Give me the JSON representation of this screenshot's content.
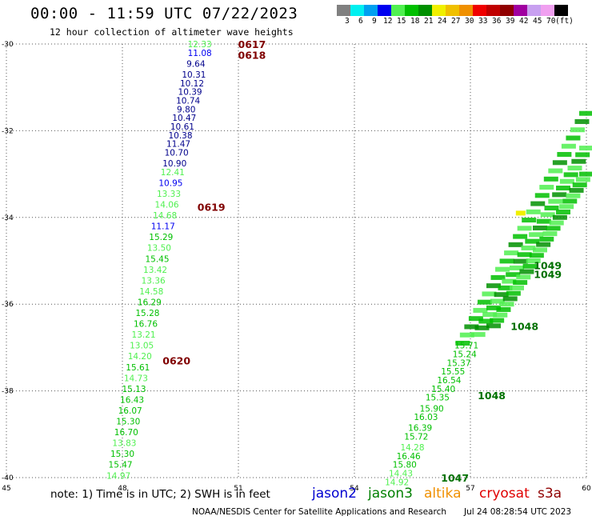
{
  "header": {
    "title": "00:00 - 11:59 UTC 07/22/2023",
    "subtitle": "12 hour collection of altimeter wave heights"
  },
  "legend": {
    "colors": [
      "#808080",
      "#00f0f0",
      "#00a0f0",
      "#0000f0",
      "#50f050",
      "#00c000",
      "#009000",
      "#f0f000",
      "#f0c000",
      "#f09000",
      "#f00000",
      "#c00000",
      "#900000",
      "#a000a0",
      "#c8a0f0",
      "#f0a0f0",
      "#000000"
    ],
    "labels": [
      "3",
      "6",
      "9",
      "12",
      "15",
      "18",
      "21",
      "24",
      "27",
      "30",
      "33",
      "36",
      "39",
      "42",
      "45",
      "70",
      "(ft)"
    ]
  },
  "axes": {
    "lat_labels": [
      "-30",
      "-32",
      "-34",
      "-36",
      "-38",
      "-40"
    ],
    "lon_labels": [
      "45",
      "48",
      "51",
      "54",
      "57",
      "60"
    ]
  },
  "chart_data": {
    "type": "scatter",
    "x_range": [
      45,
      60
    ],
    "y_range": [
      -40,
      -30
    ],
    "point_labels": [
      {
        "v": "12.33",
        "c": "#50f050",
        "x": 50.0,
        "y": -30.0
      },
      {
        "v": "11.08",
        "c": "#0000f0",
        "x": 50.0,
        "y": -30.2
      },
      {
        "v": "9.64",
        "c": "#00008b",
        "x": 49.9,
        "y": -30.45
      },
      {
        "v": "10.31",
        "c": "#00008b",
        "x": 49.85,
        "y": -30.7
      },
      {
        "v": "10.12",
        "c": "#00008b",
        "x": 49.8,
        "y": -30.9
      },
      {
        "v": "10.39",
        "c": "#00008b",
        "x": 49.75,
        "y": -31.1
      },
      {
        "v": "10.74",
        "c": "#00008b",
        "x": 49.7,
        "y": -31.3
      },
      {
        "v": "9.80",
        "c": "#00008b",
        "x": 49.65,
        "y": -31.5
      },
      {
        "v": "10.47",
        "c": "#00008b",
        "x": 49.6,
        "y": -31.7
      },
      {
        "v": "10.61",
        "c": "#00008b",
        "x": 49.55,
        "y": -31.9
      },
      {
        "v": "10.38",
        "c": "#00008b",
        "x": 49.5,
        "y": -32.1
      },
      {
        "v": "11.47",
        "c": "#00008b",
        "x": 49.45,
        "y": -32.3
      },
      {
        "v": "10.70",
        "c": "#00008b",
        "x": 49.4,
        "y": -32.5
      },
      {
        "v": "10.90",
        "c": "#00008b",
        "x": 49.35,
        "y": -32.75
      },
      {
        "v": "12.41",
        "c": "#50f050",
        "x": 49.3,
        "y": -32.95
      },
      {
        "v": "10.95",
        "c": "#0000f0",
        "x": 49.25,
        "y": -33.2
      },
      {
        "v": "13.33",
        "c": "#50f050",
        "x": 49.2,
        "y": -33.45
      },
      {
        "v": "14.06",
        "c": "#50f050",
        "x": 49.15,
        "y": -33.7
      },
      {
        "v": "14.68",
        "c": "#50f050",
        "x": 49.1,
        "y": -33.95
      },
      {
        "v": "11.17",
        "c": "#0000f0",
        "x": 49.05,
        "y": -34.2
      },
      {
        "v": "15.29",
        "c": "#00c000",
        "x": 49.0,
        "y": -34.45
      },
      {
        "v": "13.50",
        "c": "#50f050",
        "x": 48.95,
        "y": -34.7
      },
      {
        "v": "15.45",
        "c": "#00c000",
        "x": 48.9,
        "y": -34.95
      },
      {
        "v": "13.42",
        "c": "#50f050",
        "x": 48.85,
        "y": -35.2
      },
      {
        "v": "13.36",
        "c": "#50f050",
        "x": 48.8,
        "y": -35.45
      },
      {
        "v": "14.58",
        "c": "#50f050",
        "x": 48.75,
        "y": -35.7
      },
      {
        "v": "16.29",
        "c": "#00c000",
        "x": 48.7,
        "y": -35.95
      },
      {
        "v": "15.28",
        "c": "#00c000",
        "x": 48.65,
        "y": -36.2
      },
      {
        "v": "16.76",
        "c": "#00c000",
        "x": 48.6,
        "y": -36.45
      },
      {
        "v": "13.21",
        "c": "#50f050",
        "x": 48.55,
        "y": -36.7
      },
      {
        "v": "13.05",
        "c": "#50f050",
        "x": 48.5,
        "y": -36.95
      },
      {
        "v": "14.20",
        "c": "#50f050",
        "x": 48.45,
        "y": -37.2
      },
      {
        "v": "15.61",
        "c": "#00c000",
        "x": 48.4,
        "y": -37.45
      },
      {
        "v": "14.73",
        "c": "#50f050",
        "x": 48.35,
        "y": -37.7
      },
      {
        "v": "15.13",
        "c": "#00c000",
        "x": 48.3,
        "y": -37.95
      },
      {
        "v": "16.43",
        "c": "#00c000",
        "x": 48.25,
        "y": -38.2
      },
      {
        "v": "16.07",
        "c": "#00c000",
        "x": 48.2,
        "y": -38.45
      },
      {
        "v": "15.30",
        "c": "#00c000",
        "x": 48.15,
        "y": -38.7
      },
      {
        "v": "16.70",
        "c": "#00c000",
        "x": 48.1,
        "y": -38.95
      },
      {
        "v": "13.83",
        "c": "#50f050",
        "x": 48.05,
        "y": -39.2
      },
      {
        "v": "15.30",
        "c": "#00c000",
        "x": 48.0,
        "y": -39.45
      },
      {
        "v": "15.47",
        "c": "#00c000",
        "x": 47.95,
        "y": -39.7
      },
      {
        "v": "14.97",
        "c": "#50f050",
        "x": 47.9,
        "y": -39.95
      },
      {
        "v": "15.71",
        "c": "#00c000",
        "x": 56.9,
        "y": -36.95
      },
      {
        "v": "15.24",
        "c": "#00c000",
        "x": 56.85,
        "y": -37.15
      },
      {
        "v": "15.37",
        "c": "#00c000",
        "x": 56.7,
        "y": -37.35
      },
      {
        "v": "15.55",
        "c": "#00c000",
        "x": 56.55,
        "y": -37.55
      },
      {
        "v": "16.54",
        "c": "#00c000",
        "x": 56.45,
        "y": -37.75
      },
      {
        "v": "15.40",
        "c": "#00c000",
        "x": 56.3,
        "y": -37.95
      },
      {
        "v": "15.35",
        "c": "#00c000",
        "x": 56.15,
        "y": -38.15
      },
      {
        "v": "15.90",
        "c": "#00c000",
        "x": 56.0,
        "y": -38.4
      },
      {
        "v": "16.03",
        "c": "#00c000",
        "x": 55.85,
        "y": -38.6
      },
      {
        "v": "16.39",
        "c": "#00c000",
        "x": 55.7,
        "y": -38.85
      },
      {
        "v": "15.72",
        "c": "#00c000",
        "x": 55.6,
        "y": -39.05
      },
      {
        "v": "14.28",
        "c": "#50f050",
        "x": 55.5,
        "y": -39.3
      },
      {
        "v": "16.46",
        "c": "#00c000",
        "x": 55.4,
        "y": -39.5
      },
      {
        "v": "15.80",
        "c": "#00c000",
        "x": 55.3,
        "y": -39.7
      },
      {
        "v": "14.43",
        "c": "#50f050",
        "x": 55.2,
        "y": -39.9
      },
      {
        "v": "14.92",
        "c": "#50f050",
        "x": 55.1,
        "y": -40.1
      }
    ],
    "track_labels": [
      {
        "t": "0617",
        "x": 51.35,
        "y": -30.0
      },
      {
        "t": "0618",
        "x": 51.35,
        "y": -30.25
      },
      {
        "t": "0619",
        "x": 50.3,
        "y": -33.75
      },
      {
        "t": "0620",
        "x": 49.4,
        "y": -37.3
      },
      {
        "t": "1047",
        "x": 56.6,
        "y": -40.0
      },
      {
        "t": "1048",
        "x": 57.55,
        "y": -38.1
      },
      {
        "t": "1048",
        "x": 58.4,
        "y": -36.5
      },
      {
        "t": "1049",
        "x": 59.0,
        "y": -35.3
      },
      {
        "t": "1049",
        "x": 59.0,
        "y": -35.1
      }
    ]
  },
  "note": "note: 1) Time is in UTC; 2) SWH is in feet",
  "satellites": [
    {
      "name": "jason2",
      "color": "#0000d0"
    },
    {
      "name": "jason3",
      "color": "#008000"
    },
    {
      "name": "altika",
      "color": "#f09000"
    },
    {
      "name": "cryosat",
      "color": "#e00000"
    },
    {
      "name": "s3a",
      "color": "#900000"
    }
  ],
  "footer": {
    "agency": "NOAA/NESDIS Center for Satellite Applications and Research",
    "generated": "Jul 24 08:28:54 UTC 2023"
  }
}
